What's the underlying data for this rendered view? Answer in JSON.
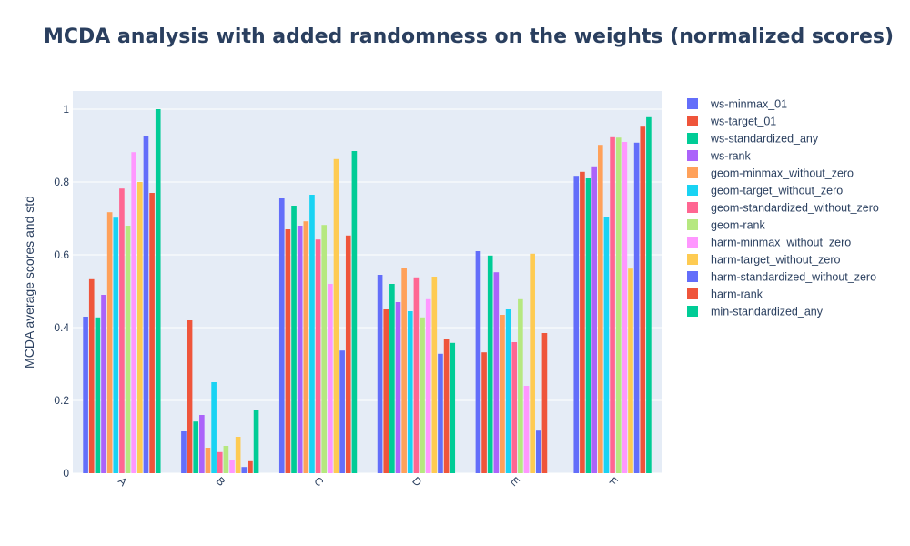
{
  "chart_data": {
    "type": "bar",
    "title": "MCDA analysis with added randomness on the weights (normalized scores)",
    "xlabel": "",
    "ylabel": "MCDA average scores and std",
    "ylim": [
      0,
      1.05
    ],
    "yticks": [
      0,
      0.2,
      0.4,
      0.6,
      0.8,
      1
    ],
    "ytick_labels": [
      "0",
      "0.2",
      "0.4",
      "0.6",
      "0.8",
      "1"
    ],
    "grid": true,
    "legend_position": "right",
    "categories": [
      "A",
      "B",
      "C",
      "D",
      "E",
      "F"
    ],
    "series": [
      {
        "name": "ws-minmax_01",
        "color": "#636efa",
        "values": [
          0.43,
          0.115,
          0.755,
          0.545,
          0.61,
          0.817
        ]
      },
      {
        "name": "ws-target_01",
        "color": "#EF553B",
        "values": [
          0.533,
          0.42,
          0.67,
          0.45,
          0.332,
          0.828
        ]
      },
      {
        "name": "ws-standardized_any",
        "color": "#00cc96",
        "values": [
          0.428,
          0.142,
          0.735,
          0.52,
          0.598,
          0.81
        ]
      },
      {
        "name": "ws-rank",
        "color": "#ab63fa",
        "values": [
          0.49,
          0.16,
          0.68,
          0.47,
          0.552,
          0.843
        ]
      },
      {
        "name": "geom-minmax_without_zero",
        "color": "#FFA15A",
        "values": [
          0.717,
          0.07,
          0.692,
          0.565,
          0.435,
          0.902
        ]
      },
      {
        "name": "geom-target_without_zero",
        "color": "#19d3f3",
        "values": [
          0.702,
          0.25,
          0.765,
          0.445,
          0.45,
          0.705
        ]
      },
      {
        "name": "geom-standardized_without_zero",
        "color": "#FF6692",
        "values": [
          0.782,
          0.058,
          0.642,
          0.538,
          0.36,
          0.923
        ]
      },
      {
        "name": "geom-rank",
        "color": "#B6E880",
        "values": [
          0.68,
          0.075,
          0.682,
          0.428,
          0.478,
          0.922
        ]
      },
      {
        "name": "harm-minmax_without_zero",
        "color": "#FF97FF",
        "values": [
          0.882,
          0.037,
          0.52,
          0.478,
          0.24,
          0.91
        ]
      },
      {
        "name": "harm-target_without_zero",
        "color": "#FECB52",
        "values": [
          0.8,
          0.1,
          0.863,
          0.54,
          0.603,
          0.562
        ]
      },
      {
        "name": "harm-standardized_without_zero",
        "color": "#636efa",
        "values": [
          0.925,
          0.017,
          0.337,
          0.328,
          0.117,
          0.908
        ]
      },
      {
        "name": "harm-rank",
        "color": "#EF553B",
        "values": [
          0.77,
          0.033,
          0.653,
          0.37,
          0.385,
          0.952
        ]
      },
      {
        "name": "min-standardized_any",
        "color": "#00cc96",
        "values": [
          1.0,
          0.175,
          0.885,
          0.358,
          0,
          0.978
        ]
      }
    ]
  },
  "colors": {
    "plot_background": "#e5ecf6",
    "gridline": "#ffffff",
    "text": "#2a3f5f"
  }
}
